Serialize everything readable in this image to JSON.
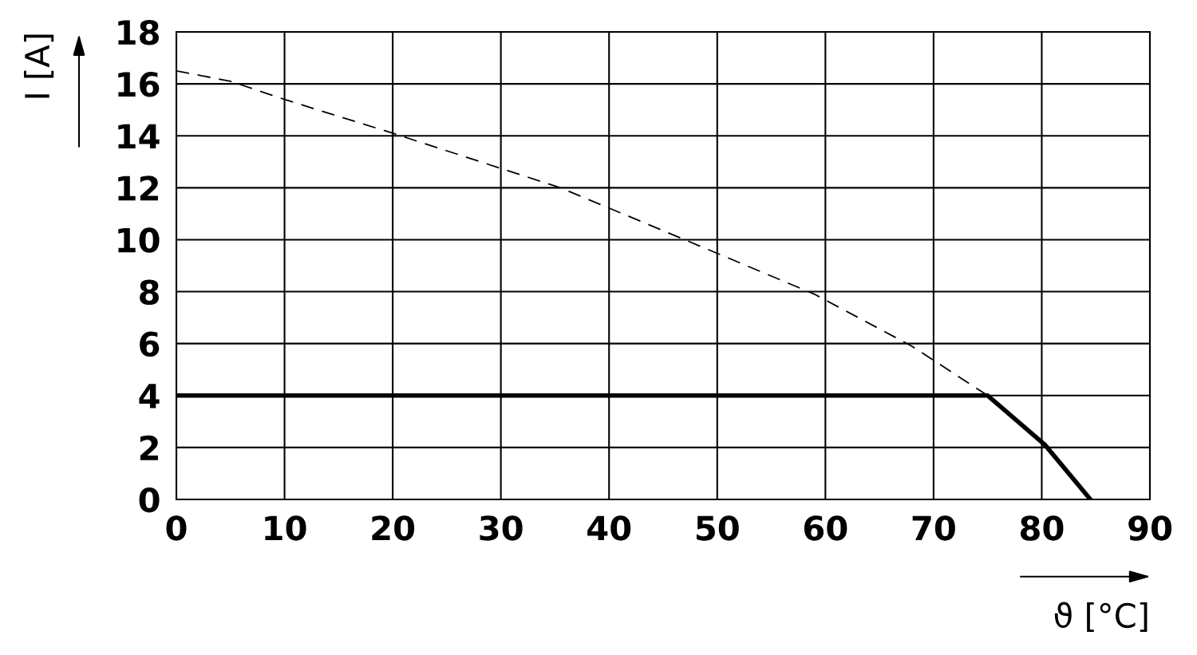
{
  "chart_data": {
    "type": "line",
    "xlabel": "ϑ [°C]",
    "ylabel": "I [A]",
    "xlim": [
      0,
      90
    ],
    "xticks": [
      0,
      10,
      20,
      30,
      40,
      50,
      60,
      70,
      80,
      90
    ],
    "ylim": [
      0,
      18
    ],
    "yticks": [
      0,
      2,
      4,
      6,
      8,
      10,
      12,
      14,
      16,
      18
    ],
    "grid": true,
    "legend": false,
    "marker": "none",
    "series": [
      {
        "color": "#000000",
        "line_style": "dashed",
        "x": [
          0,
          5,
          10,
          20,
          35.5,
          47,
          59,
          68,
          75,
          80.3,
          84.5
        ],
        "values": [
          16.5,
          16.1,
          15.4,
          14.1,
          12.0,
          10.0,
          7.9,
          5.9,
          4.0,
          2.1,
          0
        ]
      },
      {
        "color": "#000000",
        "line_style": "solid",
        "x": [
          0,
          75,
          80.3,
          84.5
        ],
        "values": [
          4.0,
          4.0,
          2.1,
          0
        ]
      }
    ]
  }
}
